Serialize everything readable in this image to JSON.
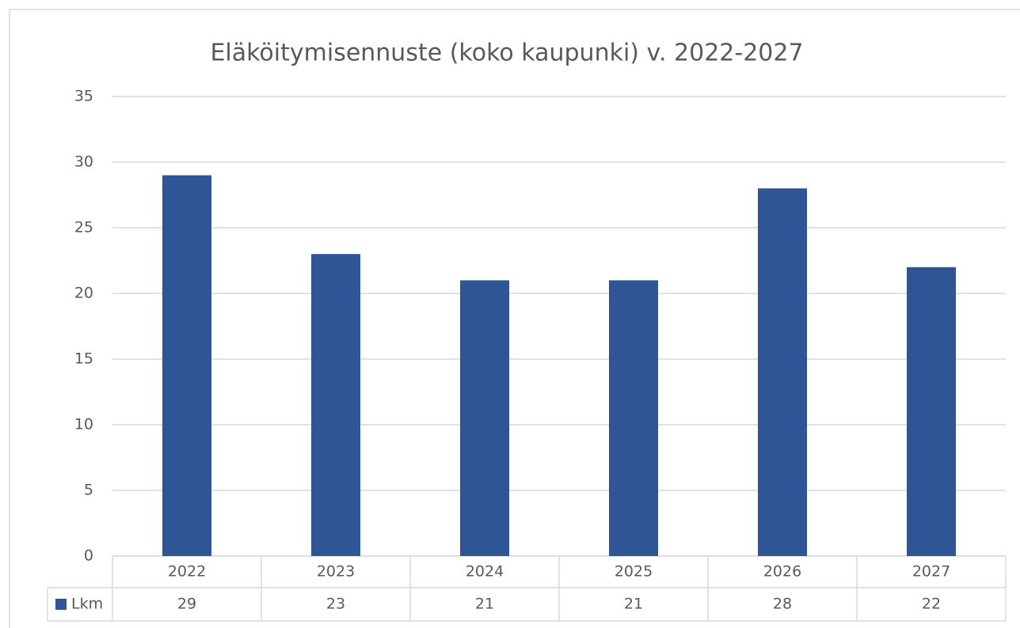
{
  "chart_data": {
    "type": "bar",
    "title": "Eläköitymisennuste (koko kaupunki) v. 2022-2027",
    "categories": [
      "2022",
      "2023",
      "2024",
      "2025",
      "2026",
      "2027"
    ],
    "series": [
      {
        "name": "Lkm",
        "color": "#2f5597",
        "values": [
          29,
          23,
          21,
          21,
          28,
          22
        ]
      }
    ],
    "ylim": [
      0,
      35
    ],
    "yticks": [
      0,
      5,
      10,
      15,
      20,
      25,
      30,
      35
    ],
    "grid": true,
    "data_table": true
  }
}
